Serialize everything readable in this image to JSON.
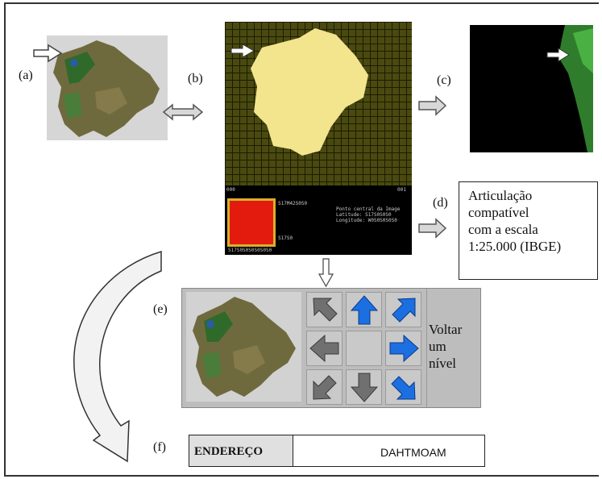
{
  "labels": {
    "a": "(a)",
    "b": "(b)",
    "c": "(c)",
    "d": "(d)",
    "e": "(e)",
    "f": "(f)"
  },
  "panel_d_lines": [
    "Articulação",
    "compatível",
    "com a escala",
    "1:25.000 (IBGE)"
  ],
  "voltar_lines": [
    "Voltar",
    "um",
    "nível"
  ],
  "address": {
    "label": "ENDEREÇO",
    "value": "DAHTMOAM"
  },
  "info_panel": {
    "top_left": "000",
    "top_right": "001",
    "coord_top": "S17M42S0S0",
    "coord_bottom": "S17S0",
    "coord_footer": "S17S0S0S0S0S0S0",
    "center_lines": [
      "Ponto central da Image",
      "Latitude: S17S0S0S0",
      "Longitude: W0S0S0S0S0"
    ]
  },
  "colors": {
    "grid_bg": "#4a4a10",
    "state_fill": "#f3e48e",
    "arrow_blue": "#1c6fe0",
    "arrow_gray": "#707070",
    "red_square": "#e31b0e"
  },
  "icons": [
    "right-arrow-icon",
    "left-right-arrow-icon",
    "down-arrow-icon",
    "curved-arrow-icon",
    "up-arrow-icon",
    "down-right-arrow-icon"
  ]
}
